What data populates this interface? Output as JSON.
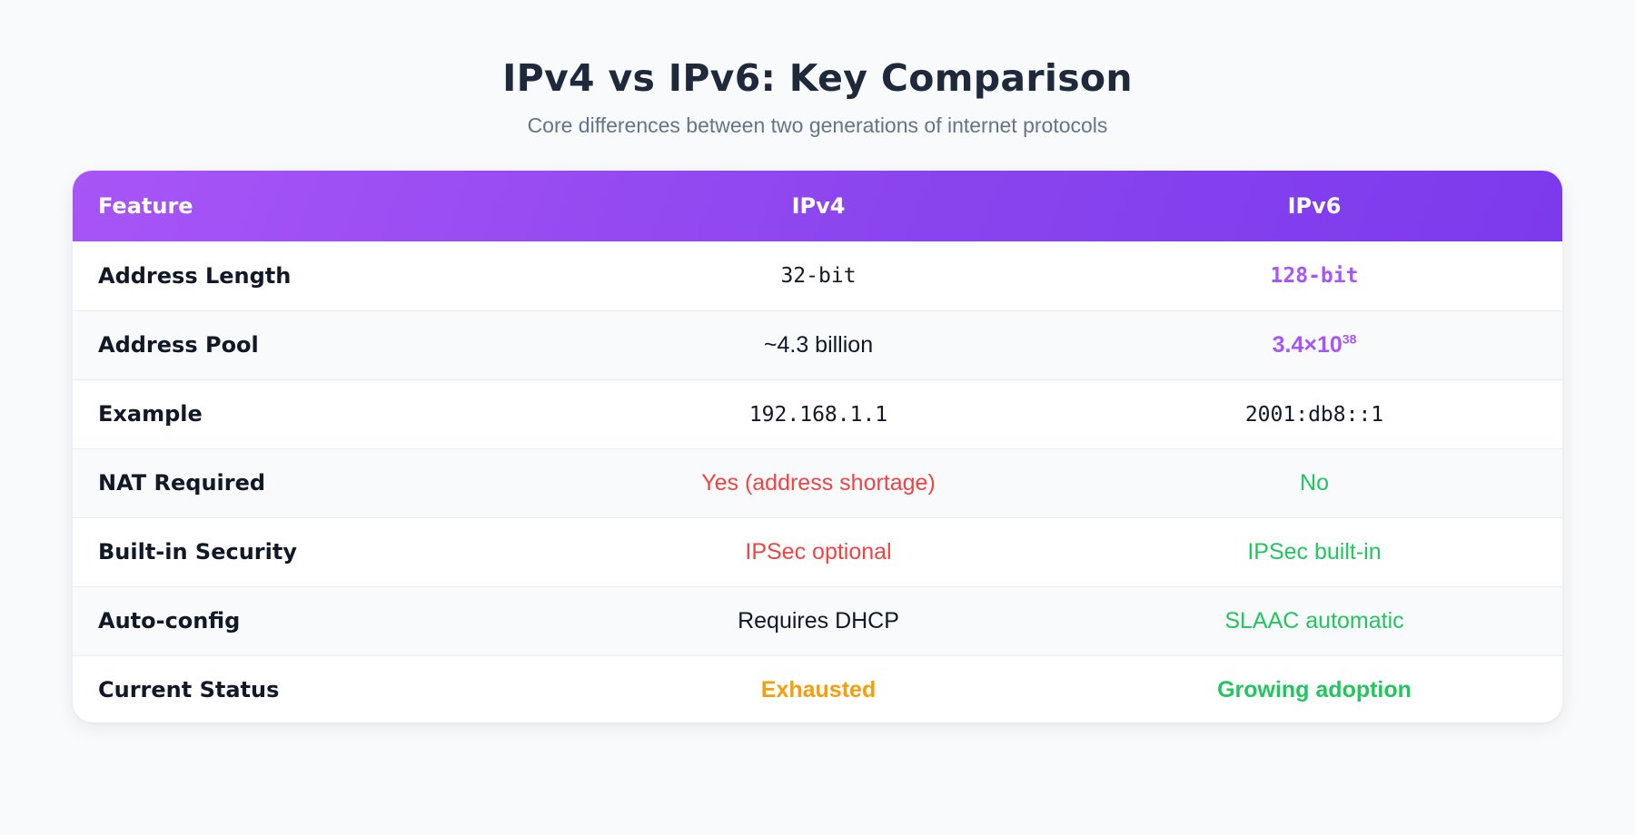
{
  "header": {
    "title": "IPv4 vs IPv6: Key Comparison",
    "subtitle": "Core differences between two generations of internet protocols"
  },
  "colors": {
    "header_gradient_start": "#a855f7",
    "header_gradient_end": "#7c3aed",
    "accent_purple": "#a855f7",
    "negative_red": "#ef4444",
    "positive_green": "#22c55e",
    "warning_orange": "#f59e0b"
  },
  "table": {
    "columns": [
      "Feature",
      "IPv4",
      "IPv6"
    ],
    "rows": [
      {
        "feature": "Address Length",
        "ipv4": {
          "text": "32-bit",
          "tone": "default",
          "mono": true,
          "bold": false
        },
        "ipv6": {
          "text": "128-bit",
          "tone": "purple",
          "mono": true,
          "bold": true
        }
      },
      {
        "feature": "Address Pool",
        "ipv4": {
          "text": "~4.3 billion",
          "tone": "default",
          "mono": false,
          "bold": false
        },
        "ipv6": {
          "text": "3.4×10",
          "sup": "38",
          "tone": "purple",
          "mono": false,
          "bold": true
        }
      },
      {
        "feature": "Example",
        "ipv4": {
          "text": "192.168.1.1",
          "tone": "default",
          "mono": true,
          "bold": false
        },
        "ipv6": {
          "text": "2001:db8::1",
          "tone": "default",
          "mono": true,
          "bold": false
        }
      },
      {
        "feature": "NAT Required",
        "ipv4": {
          "text": "Yes (address shortage)",
          "tone": "red",
          "mono": false,
          "bold": false
        },
        "ipv6": {
          "text": "No",
          "tone": "green",
          "mono": false,
          "bold": false
        }
      },
      {
        "feature": "Built-in Security",
        "ipv4": {
          "text": "IPSec optional",
          "tone": "red",
          "mono": false,
          "bold": false
        },
        "ipv6": {
          "text": "IPSec built-in",
          "tone": "green",
          "mono": false,
          "bold": false
        }
      },
      {
        "feature": "Auto-config",
        "ipv4": {
          "text": "Requires DHCP",
          "tone": "default",
          "mono": false,
          "bold": false
        },
        "ipv6": {
          "text": "SLAAC automatic",
          "tone": "green",
          "mono": false,
          "bold": false
        }
      },
      {
        "feature": "Current Status",
        "ipv4": {
          "text": "Exhausted",
          "tone": "orange",
          "mono": false,
          "bold": true
        },
        "ipv6": {
          "text": "Growing adoption",
          "tone": "green",
          "mono": false,
          "bold": true
        }
      }
    ]
  }
}
